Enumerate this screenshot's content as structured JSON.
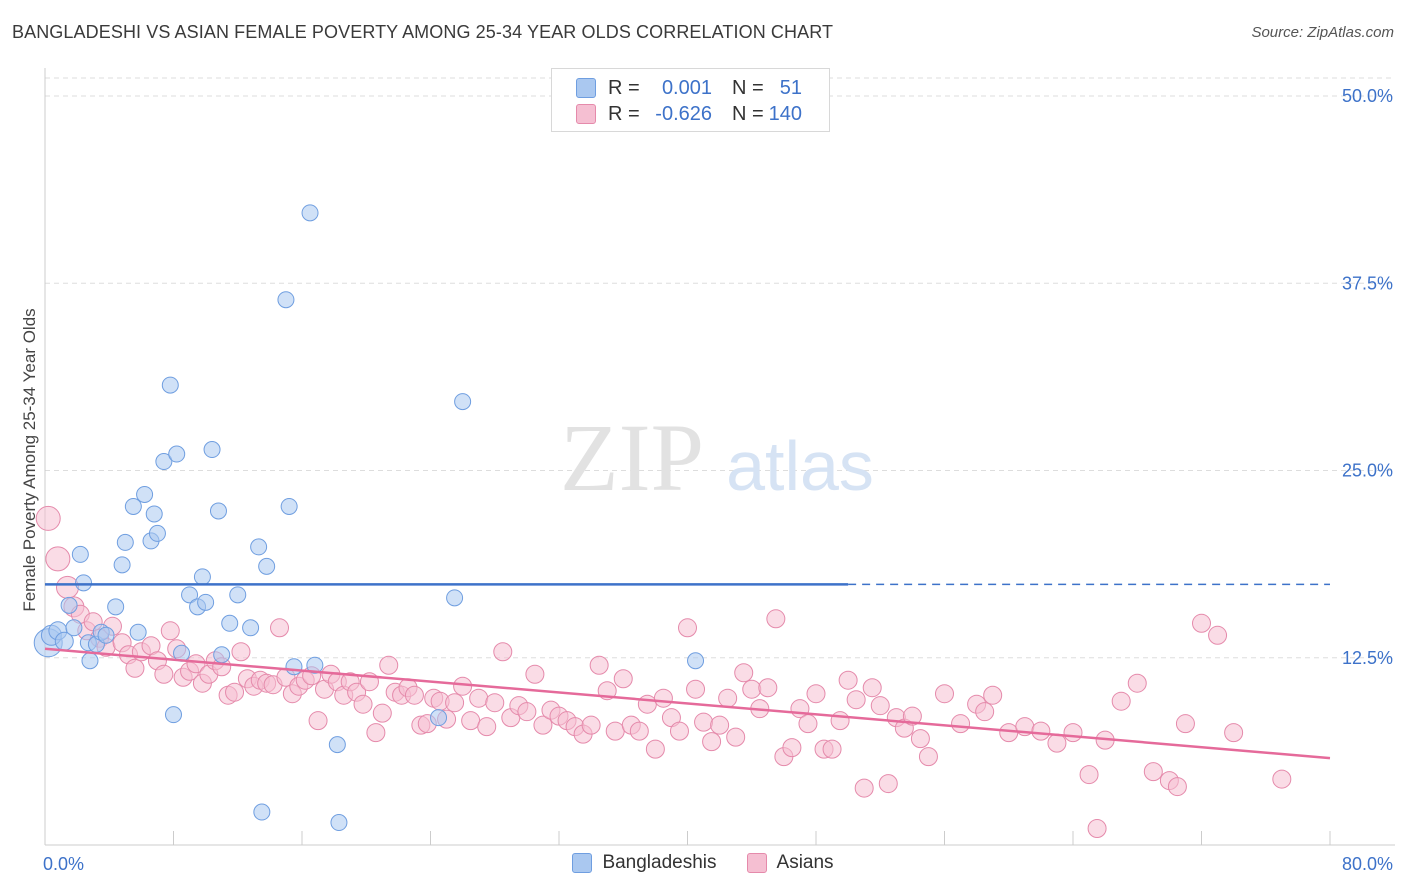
{
  "title": "BANGLADESHI VS ASIAN FEMALE POVERTY AMONG 25-34 YEAR OLDS CORRELATION CHART",
  "source": "Source: ZipAtlas.com",
  "colors": {
    "blue_fill": "#aac8f0",
    "blue_stroke": "#6f9ee0",
    "blue_line": "#3d72c9",
    "pink_fill": "#f5bfd2",
    "pink_stroke": "#e58aab",
    "pink_line": "#e56a9a",
    "tick_label": "#3d72c9",
    "grid": "#dddddd"
  },
  "legend": {
    "rows": [
      {
        "label": "R =",
        "r": "0.001",
        "nlabel": "N =",
        "n": "51"
      },
      {
        "label": "R =",
        "r": "-0.626",
        "nlabel": "N =",
        "n": "140"
      }
    ]
  },
  "bottom_legend": {
    "series1": "Bangladeshis",
    "series2": "Asians"
  },
  "watermark": {
    "zip": "ZIP",
    "atlas": "atlas"
  },
  "chart_data": {
    "type": "scatter",
    "xlabel": "",
    "ylabel": "Female Poverty Among 25-34 Year Olds",
    "xlim": [
      0,
      80
    ],
    "ylim": [
      0,
      50
    ],
    "x_tick_labels": [
      "0.0%",
      "80.0%"
    ],
    "y_ticks": [
      12.5,
      25.0,
      37.5,
      50.0
    ],
    "y_tick_labels": [
      "12.5%",
      "25.0%",
      "37.5%",
      "50.0%"
    ],
    "grid": true,
    "legend_position": "top-center",
    "series": [
      {
        "name": "Bangladeshis",
        "r": 0.001,
        "n": 51,
        "trend": {
          "x0": 0,
          "y0": 17.4,
          "x1": 50,
          "y1": 17.4,
          "dashed_to": 80
        },
        "points": [
          [
            0.2,
            13.5,
            14
          ],
          [
            0.4,
            14.0,
            10
          ],
          [
            0.8,
            14.3,
            9
          ],
          [
            1.2,
            13.6,
            9
          ],
          [
            1.5,
            16.0,
            8
          ],
          [
            1.8,
            14.5,
            8
          ],
          [
            2.2,
            19.4,
            8
          ],
          [
            2.4,
            17.5,
            8
          ],
          [
            2.7,
            13.5,
            8
          ],
          [
            2.8,
            12.3,
            8
          ],
          [
            3.2,
            13.4,
            8
          ],
          [
            3.5,
            14.2,
            8
          ],
          [
            3.8,
            14.0,
            8
          ],
          [
            4.4,
            15.9,
            8
          ],
          [
            4.8,
            18.7,
            8
          ],
          [
            5.0,
            20.2,
            8
          ],
          [
            5.5,
            22.6,
            8
          ],
          [
            5.8,
            14.2,
            8
          ],
          [
            6.2,
            23.4,
            8
          ],
          [
            6.6,
            20.3,
            8
          ],
          [
            6.8,
            22.1,
            8
          ],
          [
            7.0,
            20.8,
            8
          ],
          [
            7.4,
            25.6,
            8
          ],
          [
            7.8,
            30.7,
            8
          ],
          [
            8.0,
            8.7,
            8
          ],
          [
            8.2,
            26.1,
            8
          ],
          [
            8.5,
            12.8,
            8
          ],
          [
            9.0,
            16.7,
            8
          ],
          [
            9.5,
            15.9,
            8
          ],
          [
            9.8,
            17.9,
            8
          ],
          [
            10.0,
            16.2,
            8
          ],
          [
            10.4,
            26.4,
            8
          ],
          [
            10.8,
            22.3,
            8
          ],
          [
            11.0,
            12.7,
            8
          ],
          [
            11.5,
            14.8,
            8
          ],
          [
            12.0,
            16.7,
            8
          ],
          [
            12.8,
            14.5,
            8
          ],
          [
            13.3,
            19.9,
            8
          ],
          [
            13.8,
            18.6,
            8
          ],
          [
            13.5,
            2.2,
            8
          ],
          [
            15.0,
            36.4,
            8
          ],
          [
            15.2,
            22.6,
            8
          ],
          [
            15.5,
            11.9,
            8
          ],
          [
            16.5,
            42.2,
            8
          ],
          [
            16.8,
            12.0,
            8
          ],
          [
            18.2,
            6.7,
            8
          ],
          [
            18.3,
            1.5,
            8
          ],
          [
            24.5,
            8.5,
            8
          ],
          [
            25.5,
            16.5,
            8
          ],
          [
            26.0,
            29.6,
            8
          ],
          [
            40.5,
            12.3,
            8
          ]
        ]
      },
      {
        "name": "Asians",
        "r": -0.626,
        "n": 140,
        "trend": {
          "x0": 0,
          "y0": 13.1,
          "x1": 80,
          "y1": 5.8
        },
        "points": [
          [
            0.2,
            21.8,
            12
          ],
          [
            0.8,
            19.1,
            12
          ],
          [
            1.4,
            17.2,
            11
          ],
          [
            1.8,
            15.9,
            10
          ],
          [
            2.2,
            15.4,
            9
          ],
          [
            2.6,
            14.3,
            9
          ],
          [
            3.0,
            14.9,
            9
          ],
          [
            3.4,
            13.8,
            9
          ],
          [
            3.8,
            13.2,
            9
          ],
          [
            4.2,
            14.6,
            9
          ],
          [
            4.8,
            13.5,
            9
          ],
          [
            5.2,
            12.7,
            9
          ],
          [
            5.6,
            11.8,
            9
          ],
          [
            6.0,
            12.9,
            9
          ],
          [
            6.6,
            13.3,
            9
          ],
          [
            7.0,
            12.3,
            9
          ],
          [
            7.4,
            11.4,
            9
          ],
          [
            7.8,
            14.3,
            9
          ],
          [
            8.2,
            13.1,
            9
          ],
          [
            8.6,
            11.2,
            9
          ],
          [
            9.0,
            11.6,
            9
          ],
          [
            9.4,
            12.1,
            9
          ],
          [
            9.8,
            10.8,
            9
          ],
          [
            10.2,
            11.4,
            9
          ],
          [
            10.6,
            12.3,
            9
          ],
          [
            11.0,
            11.9,
            9
          ],
          [
            11.4,
            10.0,
            9
          ],
          [
            11.8,
            10.2,
            9
          ],
          [
            12.2,
            12.9,
            9
          ],
          [
            12.6,
            11.1,
            9
          ],
          [
            13.0,
            10.6,
            9
          ],
          [
            13.4,
            11.0,
            9
          ],
          [
            13.8,
            10.8,
            9
          ],
          [
            14.2,
            10.7,
            9
          ],
          [
            14.6,
            14.5,
            9
          ],
          [
            15.0,
            11.2,
            9
          ],
          [
            15.4,
            10.1,
            9
          ],
          [
            15.8,
            10.6,
            9
          ],
          [
            16.2,
            11.0,
            9
          ],
          [
            16.6,
            11.3,
            9
          ],
          [
            17.0,
            8.3,
            9
          ],
          [
            17.4,
            10.4,
            9
          ],
          [
            17.8,
            11.4,
            9
          ],
          [
            18.2,
            10.9,
            9
          ],
          [
            18.6,
            10.0,
            9
          ],
          [
            19.0,
            10.9,
            9
          ],
          [
            19.4,
            10.2,
            9
          ],
          [
            19.8,
            9.4,
            9
          ],
          [
            20.2,
            10.9,
            9
          ],
          [
            20.6,
            7.5,
            9
          ],
          [
            21.0,
            8.8,
            9
          ],
          [
            21.4,
            12.0,
            9
          ],
          [
            21.8,
            10.2,
            9
          ],
          [
            22.2,
            10.0,
            9
          ],
          [
            22.6,
            10.5,
            9
          ],
          [
            23.0,
            10.0,
            9
          ],
          [
            23.4,
            8.0,
            9
          ],
          [
            23.8,
            8.1,
            9
          ],
          [
            24.2,
            9.8,
            9
          ],
          [
            24.6,
            9.6,
            9
          ],
          [
            25.0,
            8.4,
            9
          ],
          [
            25.5,
            9.5,
            9
          ],
          [
            26.0,
            10.6,
            9
          ],
          [
            26.5,
            8.3,
            9
          ],
          [
            27.0,
            9.8,
            9
          ],
          [
            27.5,
            7.9,
            9
          ],
          [
            28.0,
            9.5,
            9
          ],
          [
            28.5,
            12.9,
            9
          ],
          [
            29.0,
            8.5,
            9
          ],
          [
            29.5,
            9.3,
            9
          ],
          [
            30.0,
            8.9,
            9
          ],
          [
            30.5,
            11.4,
            9
          ],
          [
            31.0,
            8.0,
            9
          ],
          [
            31.5,
            9.0,
            9
          ],
          [
            32.0,
            8.6,
            9
          ],
          [
            32.5,
            8.3,
            9
          ],
          [
            33.0,
            7.9,
            9
          ],
          [
            33.5,
            7.4,
            9
          ],
          [
            34.0,
            8.0,
            9
          ],
          [
            34.5,
            12.0,
            9
          ],
          [
            35.0,
            10.3,
            9
          ],
          [
            35.5,
            7.6,
            9
          ],
          [
            36.0,
            11.1,
            9
          ],
          [
            36.5,
            8.0,
            9
          ],
          [
            37.0,
            7.6,
            9
          ],
          [
            37.5,
            9.4,
            9
          ],
          [
            38.0,
            6.4,
            9
          ],
          [
            38.5,
            9.8,
            9
          ],
          [
            39.0,
            8.5,
            9
          ],
          [
            39.5,
            7.6,
            9
          ],
          [
            40.0,
            14.5,
            9
          ],
          [
            40.5,
            10.4,
            9
          ],
          [
            41.0,
            8.2,
            9
          ],
          [
            41.5,
            6.9,
            9
          ],
          [
            42.0,
            8.0,
            9
          ],
          [
            42.5,
            9.8,
            9
          ],
          [
            43.0,
            7.2,
            9
          ],
          [
            43.5,
            11.5,
            9
          ],
          [
            44.0,
            10.4,
            9
          ],
          [
            44.5,
            9.1,
            9
          ],
          [
            45.0,
            10.5,
            9
          ],
          [
            45.5,
            15.1,
            9
          ],
          [
            46.0,
            5.9,
            9
          ],
          [
            46.5,
            6.5,
            9
          ],
          [
            47.0,
            9.1,
            9
          ],
          [
            47.5,
            8.1,
            9
          ],
          [
            48.0,
            10.1,
            9
          ],
          [
            48.5,
            6.4,
            9
          ],
          [
            49.0,
            6.4,
            9
          ],
          [
            49.5,
            8.3,
            9
          ],
          [
            50.0,
            11.0,
            9
          ],
          [
            50.5,
            9.7,
            9
          ],
          [
            51.0,
            3.8,
            9
          ],
          [
            51.5,
            10.5,
            9
          ],
          [
            52.0,
            9.3,
            9
          ],
          [
            52.5,
            4.1,
            9
          ],
          [
            53.0,
            8.5,
            9
          ],
          [
            53.5,
            7.8,
            9
          ],
          [
            54.0,
            8.6,
            9
          ],
          [
            54.5,
            7.1,
            9
          ],
          [
            55.0,
            5.9,
            9
          ],
          [
            56.0,
            10.1,
            9
          ],
          [
            57.0,
            8.1,
            9
          ],
          [
            58.0,
            9.4,
            9
          ],
          [
            58.5,
            8.9,
            9
          ],
          [
            59.0,
            10.0,
            9
          ],
          [
            60.0,
            7.5,
            9
          ],
          [
            61.0,
            7.9,
            9
          ],
          [
            62.0,
            7.6,
            9
          ],
          [
            63.0,
            6.8,
            9
          ],
          [
            64.0,
            7.5,
            9
          ],
          [
            65.0,
            4.7,
            9
          ],
          [
            65.5,
            1.1,
            9
          ],
          [
            66.0,
            7.0,
            9
          ],
          [
            67.0,
            9.6,
            9
          ],
          [
            68.0,
            10.8,
            9
          ],
          [
            69.0,
            4.9,
            9
          ],
          [
            70.0,
            4.3,
            9
          ],
          [
            70.5,
            3.9,
            9
          ],
          [
            71.0,
            8.1,
            9
          ],
          [
            72.0,
            14.8,
            9
          ],
          [
            73.0,
            14.0,
            9
          ],
          [
            74.0,
            7.5,
            9
          ],
          [
            77.0,
            4.4,
            9
          ]
        ]
      }
    ]
  }
}
